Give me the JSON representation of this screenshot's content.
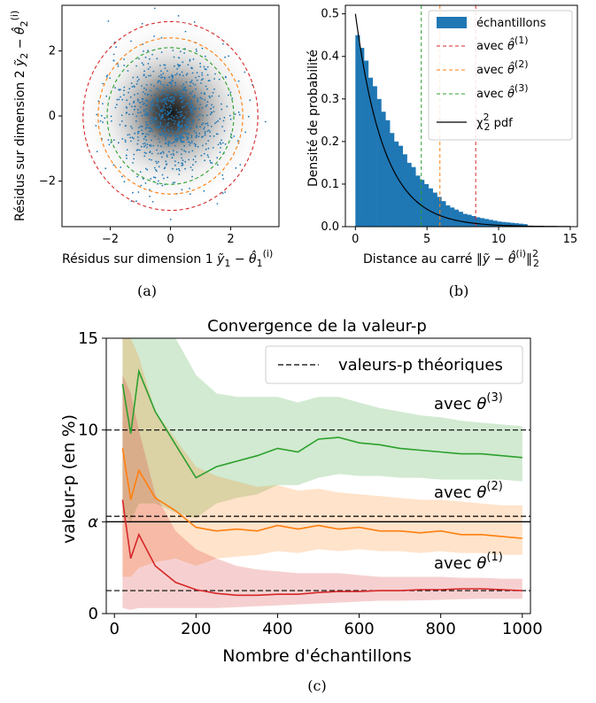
{
  "chart_data": [
    {
      "id": "a",
      "type": "scatter",
      "caption": "(a)",
      "xlabel": "Résidus sur dimension 1 ỹ1 − θ̂1(i)",
      "ylabel": "Résidus sur dimension 2 ỹ2 − θ̂2(i)",
      "xlim": [
        -3.6,
        3.6
      ],
      "ylim": [
        -3.4,
        3.4
      ],
      "xticks": [
        -2,
        0,
        2
      ],
      "yticks": [
        -2,
        0,
        2
      ],
      "xtick_labels": [
        "−2",
        "0",
        "2"
      ],
      "ytick_labels": [
        "−2",
        "0",
        "2"
      ],
      "circles": [
        {
          "name": "avec θ̂(1)",
          "radius": 2.9,
          "color": "#d62728"
        },
        {
          "name": "avec θ̂(2)",
          "radius": 2.4,
          "color": "#ff7f0e"
        },
        {
          "name": "avec θ̂(3)",
          "radius": 2.1,
          "color": "#2ca02c"
        }
      ],
      "point_color": "#1f77b4"
    },
    {
      "id": "b",
      "type": "bar",
      "caption": "(b)",
      "xlabel": "Distance au carré ‖ỹ − θ̂(i)‖²₂",
      "ylabel": "Densité de probabilité",
      "xlim": [
        -0.7,
        15.5
      ],
      "ylim": [
        0,
        0.52
      ],
      "xticks": [
        0,
        5,
        10,
        15
      ],
      "xtick_labels": [
        "0",
        "5",
        "10",
        "15"
      ],
      "yticks": [
        0.0,
        0.1,
        0.2,
        0.3,
        0.4,
        0.5
      ],
      "ytick_labels": [
        "0.0",
        "0.1",
        "0.2",
        "0.3",
        "0.4",
        "0.5"
      ],
      "bin_width": 0.3,
      "bin_start": 0,
      "values": [
        0.45,
        0.42,
        0.39,
        0.35,
        0.33,
        0.3,
        0.27,
        0.25,
        0.22,
        0.2,
        0.19,
        0.17,
        0.15,
        0.14,
        0.12,
        0.11,
        0.1,
        0.09,
        0.08,
        0.07,
        0.06,
        0.05,
        0.045,
        0.04,
        0.035,
        0.03,
        0.028,
        0.025,
        0.022,
        0.02,
        0.018,
        0.016,
        0.014,
        0.012,
        0.011,
        0.01,
        0.009,
        0.008,
        0.007,
        0.006
      ],
      "vlines": [
        {
          "name": "avec θ̂(1)",
          "x": 8.4,
          "color": "#d62728"
        },
        {
          "name": "avec θ̂(2)",
          "x": 5.9,
          "color": "#ff7f0e"
        },
        {
          "name": "avec θ̂(3)",
          "x": 4.6,
          "color": "#2ca02c"
        }
      ],
      "pdf_label": "χ²₂ pdf",
      "legend": [
        "échantillons",
        "avec θ̂(1)",
        "avec θ̂(2)",
        "avec θ̂(3)",
        "χ²₂ pdf"
      ],
      "legend_placement": "top-right",
      "bar_color": "#1f77b4"
    },
    {
      "id": "c",
      "type": "line",
      "caption": "(c)",
      "title": "Convergence de la valeur-p",
      "xlabel": "Nombre d'échantillons",
      "ylabel": "valeur-p (en %)",
      "xlim": [
        -20,
        1020
      ],
      "ylim": [
        0,
        15
      ],
      "xticks": [
        0,
        200,
        400,
        600,
        800,
        1000
      ],
      "xtick_labels": [
        "0",
        "200",
        "400",
        "600",
        "800",
        "1000"
      ],
      "ytick_values": [
        0,
        5,
        10,
        15
      ],
      "ytick_labels": [
        "0",
        "α",
        "10",
        "15"
      ],
      "theoretical": {
        "label": "valeurs-p théoriques",
        "values": [
          1.25,
          5.3,
          10
        ]
      },
      "alpha_line": 5,
      "x": [
        20,
        40,
        60,
        100,
        150,
        200,
        250,
        300,
        350,
        400,
        450,
        500,
        550,
        600,
        650,
        700,
        750,
        800,
        850,
        900,
        950,
        1000
      ],
      "series": [
        {
          "name": "avec θ(3)",
          "color": "#2ca02c",
          "values": [
            12.5,
            9.8,
            13.2,
            11.0,
            9.2,
            7.4,
            8.0,
            8.3,
            8.6,
            9.0,
            8.8,
            9.5,
            9.6,
            9.3,
            9.2,
            9.0,
            8.9,
            8.8,
            8.7,
            8.7,
            8.6,
            8.5
          ],
          "low": [
            5.5,
            5.0,
            6.0,
            6.0,
            5.5,
            5.2,
            6.0,
            6.3,
            6.5,
            7.0,
            7.0,
            7.4,
            7.6,
            7.5,
            7.5,
            7.4,
            7.4,
            7.3,
            7.3,
            7.3,
            7.3,
            7.2
          ],
          "high": [
            15,
            15,
            15,
            15,
            15,
            13.0,
            12.0,
            11.8,
            11.8,
            11.8,
            11.5,
            11.8,
            11.8,
            11.5,
            11.2,
            11.0,
            10.8,
            10.7,
            10.5,
            10.4,
            10.3,
            10.2
          ]
        },
        {
          "name": "avec θ(2)",
          "color": "#ff7f0e",
          "values": [
            9.0,
            6.2,
            7.8,
            6.3,
            5.6,
            4.7,
            4.5,
            4.6,
            4.5,
            4.8,
            4.6,
            4.8,
            4.6,
            4.7,
            4.5,
            4.5,
            4.4,
            4.5,
            4.3,
            4.3,
            4.2,
            4.1
          ],
          "low": [
            2.0,
            2.0,
            2.5,
            2.8,
            3.0,
            2.6,
            3.0,
            3.1,
            3.2,
            3.4,
            3.3,
            3.5,
            3.4,
            3.5,
            3.4,
            3.4,
            3.3,
            3.4,
            3.3,
            3.3,
            3.2,
            3.2
          ],
          "high": [
            15,
            15,
            14.0,
            11.0,
            9.5,
            8.0,
            7.5,
            7.2,
            6.9,
            7.0,
            6.7,
            6.8,
            6.6,
            6.5,
            6.4,
            6.3,
            6.2,
            6.2,
            6.1,
            6.0,
            5.9,
            5.9
          ]
        },
        {
          "name": "avec θ(1)",
          "color": "#d62728",
          "values": [
            6.2,
            3.0,
            4.3,
            2.6,
            1.7,
            1.3,
            1.1,
            1.0,
            1.0,
            1.05,
            1.05,
            1.15,
            1.2,
            1.2,
            1.25,
            1.25,
            1.3,
            1.3,
            1.35,
            1.35,
            1.3,
            1.25
          ],
          "low": [
            0.3,
            0.2,
            0.3,
            0.3,
            0.3,
            0.3,
            0.3,
            0.35,
            0.4,
            0.45,
            0.5,
            0.55,
            0.6,
            0.65,
            0.7,
            0.7,
            0.72,
            0.75,
            0.78,
            0.8,
            0.8,
            0.8
          ],
          "high": [
            13.0,
            12.0,
            10.0,
            6.5,
            4.5,
            3.5,
            3.0,
            2.6,
            2.4,
            2.3,
            2.2,
            2.2,
            2.2,
            2.1,
            2.0,
            2.0,
            2.0,
            2.0,
            1.95,
            1.95,
            1.9,
            1.9
          ]
        }
      ],
      "legend_placement": "top-right"
    }
  ]
}
